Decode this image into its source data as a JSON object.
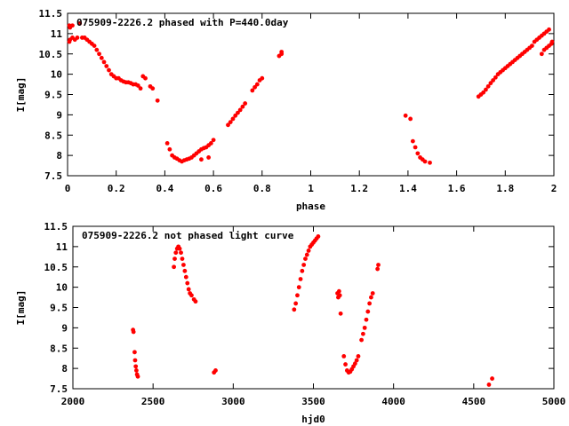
{
  "chart_data": [
    {
      "type": "scatter",
      "title": "075909-2226.2 phased with P=440.0day",
      "xlabel": "phase",
      "ylabel": "I[mag]",
      "xlim": [
        0,
        2
      ],
      "ylim": [
        11.5,
        7.5
      ],
      "y_inverted": true,
      "xticks": [
        0,
        0.2,
        0.4,
        0.6,
        0.8,
        1,
        1.2,
        1.4,
        1.6,
        1.8,
        2
      ],
      "xtick_labels": [
        "0",
        "0.2",
        "0.4",
        "0.6",
        "0.8",
        "1",
        "1.2",
        "1.4",
        "1.6",
        "1.8",
        "2"
      ],
      "yticks": [
        7.5,
        8,
        8.5,
        9,
        9.5,
        10,
        10.5,
        11,
        11.5
      ],
      "ytick_labels": [
        "7.5",
        "8",
        "8.5",
        "9",
        "9.5",
        "10",
        "10.5",
        "11",
        "11.5"
      ],
      "grid": false,
      "marker_color": "#ff0000",
      "series": [
        {
          "points": [
            [
              0.0,
              10.8
            ],
            [
              0.0,
              11.2
            ],
            [
              0.01,
              10.85
            ],
            [
              0.01,
              11.15
            ],
            [
              0.02,
              10.9
            ],
            [
              0.02,
              11.2
            ],
            [
              0.03,
              10.85
            ],
            [
              0.04,
              10.9
            ],
            [
              0.05,
              11.25
            ],
            [
              0.06,
              10.9
            ],
            [
              0.07,
              10.9
            ],
            [
              0.08,
              10.85
            ],
            [
              0.09,
              10.8
            ],
            [
              0.1,
              10.75
            ],
            [
              0.11,
              10.7
            ],
            [
              0.12,
              10.6
            ],
            [
              0.13,
              10.5
            ],
            [
              0.14,
              10.4
            ],
            [
              0.15,
              10.3
            ],
            [
              0.16,
              10.2
            ],
            [
              0.17,
              10.1
            ],
            [
              0.18,
              10.0
            ],
            [
              0.19,
              9.95
            ],
            [
              0.2,
              9.9
            ],
            [
              0.21,
              9.9
            ],
            [
              0.22,
              9.85
            ],
            [
              0.23,
              9.82
            ],
            [
              0.24,
              9.8
            ],
            [
              0.25,
              9.8
            ],
            [
              0.26,
              9.78
            ],
            [
              0.27,
              9.75
            ],
            [
              0.28,
              9.75
            ],
            [
              0.29,
              9.72
            ],
            [
              0.3,
              9.65
            ],
            [
              0.31,
              9.95
            ],
            [
              0.32,
              9.9
            ],
            [
              0.34,
              9.7
            ],
            [
              0.35,
              9.65
            ],
            [
              0.37,
              9.35
            ],
            [
              0.41,
              8.3
            ],
            [
              0.42,
              8.15
            ],
            [
              0.43,
              8.0
            ],
            [
              0.44,
              7.95
            ],
            [
              0.45,
              7.92
            ],
            [
              0.46,
              7.88
            ],
            [
              0.47,
              7.85
            ],
            [
              0.48,
              7.88
            ],
            [
              0.49,
              7.9
            ],
            [
              0.5,
              7.92
            ],
            [
              0.51,
              7.95
            ],
            [
              0.52,
              8.0
            ],
            [
              0.53,
              8.05
            ],
            [
              0.54,
              8.1
            ],
            [
              0.55,
              8.15
            ],
            [
              0.56,
              8.18
            ],
            [
              0.57,
              8.2
            ],
            [
              0.58,
              8.25
            ],
            [
              0.59,
              8.3
            ],
            [
              0.6,
              8.38
            ],
            [
              0.55,
              7.9
            ],
            [
              0.58,
              7.95
            ],
            [
              0.66,
              8.75
            ],
            [
              0.67,
              8.82
            ],
            [
              0.68,
              8.9
            ],
            [
              0.69,
              8.98
            ],
            [
              0.7,
              9.05
            ],
            [
              0.71,
              9.12
            ],
            [
              0.72,
              9.2
            ],
            [
              0.73,
              9.28
            ],
            [
              0.76,
              9.6
            ],
            [
              0.77,
              9.68
            ],
            [
              0.78,
              9.75
            ],
            [
              0.79,
              9.85
            ],
            [
              0.8,
              9.9
            ],
            [
              0.87,
              10.45
            ],
            [
              0.88,
              10.5
            ],
            [
              0.88,
              10.55
            ],
            [
              1.39,
              8.98
            ],
            [
              1.41,
              8.9
            ],
            [
              1.42,
              8.35
            ],
            [
              1.43,
              8.2
            ],
            [
              1.44,
              8.05
            ],
            [
              1.45,
              7.95
            ],
            [
              1.46,
              7.9
            ],
            [
              1.47,
              7.85
            ],
            [
              1.49,
              7.82
            ],
            [
              1.69,
              9.45
            ],
            [
              1.7,
              9.5
            ],
            [
              1.71,
              9.55
            ],
            [
              1.72,
              9.62
            ],
            [
              1.73,
              9.7
            ],
            [
              1.74,
              9.78
            ],
            [
              1.75,
              9.85
            ],
            [
              1.76,
              9.92
            ],
            [
              1.77,
              10.0
            ],
            [
              1.78,
              10.05
            ],
            [
              1.79,
              10.1
            ],
            [
              1.8,
              10.15
            ],
            [
              1.81,
              10.2
            ],
            [
              1.82,
              10.25
            ],
            [
              1.83,
              10.3
            ],
            [
              1.84,
              10.35
            ],
            [
              1.85,
              10.4
            ],
            [
              1.86,
              10.45
            ],
            [
              1.87,
              10.5
            ],
            [
              1.88,
              10.55
            ],
            [
              1.89,
              10.6
            ],
            [
              1.9,
              10.65
            ],
            [
              1.91,
              10.7
            ],
            [
              1.92,
              10.8
            ],
            [
              1.93,
              10.85
            ],
            [
              1.94,
              10.9
            ],
            [
              1.95,
              10.95
            ],
            [
              1.96,
              11.0
            ],
            [
              1.97,
              11.05
            ],
            [
              1.98,
              11.1
            ],
            [
              1.95,
              10.5
            ],
            [
              1.96,
              10.6
            ],
            [
              1.97,
              10.65
            ],
            [
              1.98,
              10.7
            ],
            [
              1.99,
              10.75
            ],
            [
              2.0,
              10.8
            ]
          ]
        }
      ]
    },
    {
      "type": "scatter",
      "title": "075909-2226.2 not phased light curve",
      "xlabel": "hjd0",
      "ylabel": "I[mag]",
      "xlim": [
        2000,
        5000
      ],
      "ylim": [
        11.5,
        7.5
      ],
      "y_inverted": true,
      "xticks": [
        2000,
        2500,
        3000,
        3500,
        4000,
        4500,
        5000
      ],
      "xtick_labels": [
        "2000",
        "2500",
        "3000",
        "3500",
        "4000",
        "4500",
        "5000"
      ],
      "yticks": [
        7.5,
        8,
        8.5,
        9,
        9.5,
        10,
        10.5,
        11,
        11.5
      ],
      "ytick_labels": [
        "7.5",
        "8",
        "8.5",
        "9",
        "9.5",
        "10",
        "10.5",
        "11",
        "11.5"
      ],
      "grid": false,
      "marker_color": "#ff0000",
      "series": [
        {
          "points": [
            [
              2375,
              8.95
            ],
            [
              2378,
              8.9
            ],
            [
              2385,
              8.4
            ],
            [
              2388,
              8.2
            ],
            [
              2392,
              8.05
            ],
            [
              2396,
              7.95
            ],
            [
              2400,
              7.85
            ],
            [
              2405,
              7.8
            ],
            [
              2880,
              7.9
            ],
            [
              2890,
              7.95
            ],
            [
              2630,
              10.5
            ],
            [
              2635,
              10.7
            ],
            [
              2642,
              10.85
            ],
            [
              2650,
              10.95
            ],
            [
              2658,
              11.0
            ],
            [
              2666,
              10.95
            ],
            [
              2674,
              10.85
            ],
            [
              2682,
              10.7
            ],
            [
              2690,
              10.55
            ],
            [
              2698,
              10.4
            ],
            [
              2706,
              10.25
            ],
            [
              2714,
              10.1
            ],
            [
              2722,
              9.95
            ],
            [
              2730,
              9.85
            ],
            [
              2740,
              9.8
            ],
            [
              2755,
              9.7
            ],
            [
              2765,
              9.65
            ],
            [
              3380,
              9.45
            ],
            [
              3390,
              9.6
            ],
            [
              3400,
              9.8
            ],
            [
              3410,
              10.0
            ],
            [
              3420,
              10.2
            ],
            [
              3430,
              10.4
            ],
            [
              3440,
              10.55
            ],
            [
              3450,
              10.7
            ],
            [
              3460,
              10.8
            ],
            [
              3470,
              10.9
            ],
            [
              3480,
              11.0
            ],
            [
              3490,
              11.05
            ],
            [
              3500,
              11.1
            ],
            [
              3510,
              11.15
            ],
            [
              3520,
              11.2
            ],
            [
              3530,
              11.25
            ],
            [
              3650,
              9.85
            ],
            [
              3655,
              9.75
            ],
            [
              3660,
              9.9
            ],
            [
              3665,
              9.8
            ],
            [
              3670,
              9.35
            ],
            [
              3690,
              8.3
            ],
            [
              3700,
              8.1
            ],
            [
              3710,
              7.95
            ],
            [
              3720,
              7.9
            ],
            [
              3730,
              7.92
            ],
            [
              3740,
              7.98
            ],
            [
              3750,
              8.05
            ],
            [
              3760,
              8.12
            ],
            [
              3770,
              8.2
            ],
            [
              3780,
              8.3
            ],
            [
              3800,
              8.7
            ],
            [
              3810,
              8.85
            ],
            [
              3820,
              9.0
            ],
            [
              3830,
              9.2
            ],
            [
              3840,
              9.4
            ],
            [
              3850,
              9.6
            ],
            [
              3860,
              9.75
            ],
            [
              3870,
              9.85
            ],
            [
              3900,
              10.45
            ],
            [
              3905,
              10.55
            ],
            [
              4595,
              7.6
            ],
            [
              4615,
              7.75
            ]
          ]
        }
      ]
    }
  ]
}
